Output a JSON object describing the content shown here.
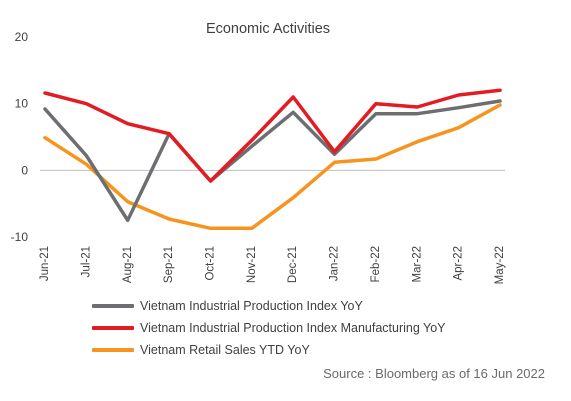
{
  "chart_data": {
    "type": "line",
    "title": "Economic Activities",
    "categories": [
      "Jun-21",
      "Jul-21",
      "Aug-21",
      "Sep-21",
      "Oct-21",
      "Nov-21",
      "Dec-21",
      "Jan-22",
      "Feb-22",
      "Mar-22",
      "Apr-22",
      "May-22"
    ],
    "ylim": [
      -10,
      20
    ],
    "yticks": [
      "20",
      "10",
      "0",
      "-10"
    ],
    "grid": false,
    "legend_position": "bottom",
    "series": [
      {
        "name": "Vietnam Industrial Production Index YoY",
        "color": "#6d6e71",
        "values": [
          9.2,
          2.2,
          -7.5,
          5.5,
          -1.6,
          3.6,
          8.7,
          2.4,
          8.5,
          8.5,
          9.4,
          10.4
        ]
      },
      {
        "name": "Vietnam Industrial Production Index Manufacturing YoY",
        "color": "#e31b23",
        "values": [
          11.6,
          10.0,
          7.0,
          5.5,
          -1.6,
          4.5,
          11.0,
          2.8,
          10.0,
          9.5,
          11.3,
          12.0
        ]
      },
      {
        "name": "Vietnam Retail Sales YTD YoY",
        "color": "#f7941d",
        "values": [
          4.9,
          0.9,
          -4.7,
          -7.3,
          -8.7,
          -8.7,
          -4.1,
          1.2,
          1.7,
          4.3,
          6.4,
          9.8
        ]
      }
    ]
  },
  "source": "Source : Bloomberg as of 16 Jun 2022"
}
